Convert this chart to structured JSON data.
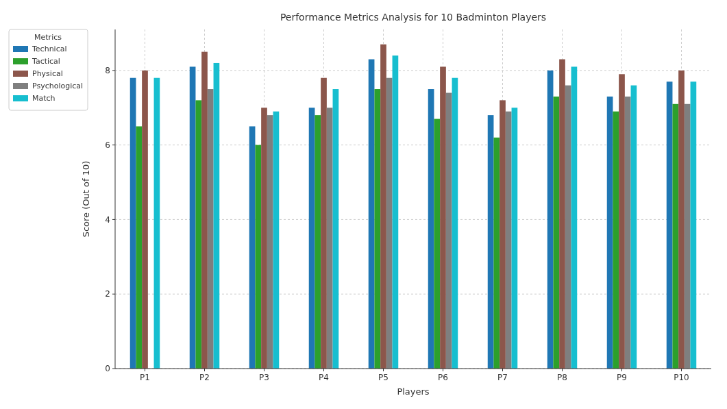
{
  "chart_data": {
    "type": "bar",
    "title": "Performance Metrics Analysis for 10 Badminton Players",
    "xlabel": "Players",
    "ylabel": "Score (Out of 10)",
    "legend_title": "Metrics",
    "categories": [
      "P1",
      "P2",
      "P3",
      "P4",
      "P5",
      "P6",
      "P7",
      "P8",
      "P9",
      "P10"
    ],
    "series": [
      {
        "name": "Technical",
        "color": "#1f77b4",
        "values": [
          7.8,
          8.1,
          6.5,
          7.0,
          8.3,
          7.5,
          6.8,
          8.0,
          7.3,
          7.7
        ]
      },
      {
        "name": "Tactical",
        "color": "#2ca02c",
        "values": [
          6.5,
          7.2,
          6.0,
          6.8,
          7.5,
          6.7,
          6.2,
          7.3,
          6.9,
          7.1
        ]
      },
      {
        "name": "Physical",
        "color": "#8c564b",
        "values": [
          8.0,
          8.5,
          7.0,
          7.8,
          8.7,
          8.1,
          7.2,
          8.3,
          7.9,
          8.0
        ]
      },
      {
        "name": "Psychological",
        "color": "#7f7f7f",
        "values": [
          null,
          7.5,
          6.8,
          7.0,
          7.8,
          7.4,
          6.9,
          7.6,
          7.3,
          7.1
        ]
      },
      {
        "name": "Match",
        "color": "#17becf",
        "values": [
          7.8,
          8.2,
          6.9,
          7.5,
          8.4,
          7.8,
          7.0,
          8.1,
          7.6,
          7.7
        ]
      }
    ],
    "ylim": [
      0,
      9.1
    ],
    "yticks": [
      0,
      2,
      4,
      6,
      8
    ],
    "grid": true,
    "legend": "top left"
  }
}
